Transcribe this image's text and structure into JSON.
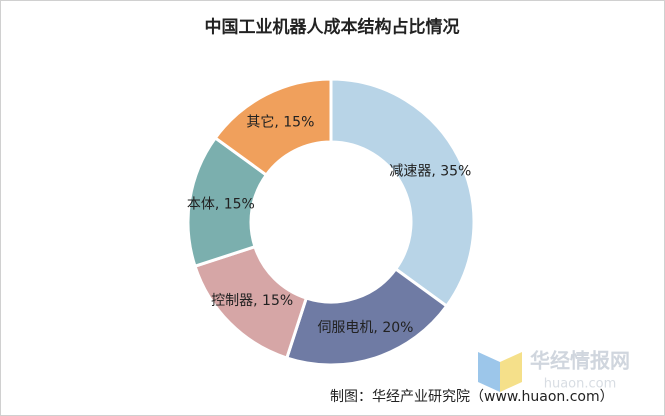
{
  "chart_data": {
    "type": "pie",
    "title": "中国工业机器人成本结构占比情况",
    "values": [
      35,
      20,
      15,
      15,
      15
    ],
    "value_labels": [
      "减速器, 35%",
      "伺服电机, 20%",
      "控制器, 15%",
      "本体, 15%",
      "其它, 15%"
    ],
    "colors": [
      "#b8d4e7",
      "#6f7ba4",
      "#d6a6a6",
      "#7bafae",
      "#f0a05c"
    ],
    "hole": true,
    "source": "制图：华经产业研究院（www.huaon.com）",
    "watermark": {
      "text": "华经情报网",
      "sub": "huaon.com"
    }
  }
}
